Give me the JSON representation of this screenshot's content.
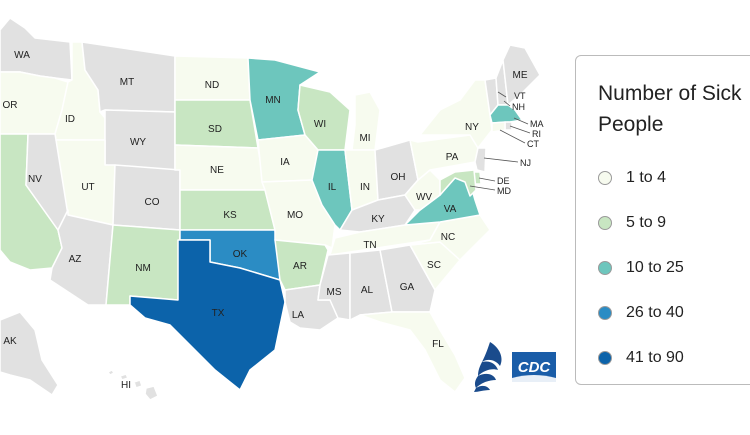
{
  "colors": {
    "none": "#e1e1e1",
    "border": "#ffffff",
    "bin1": "#f7fbef",
    "bin2": "#c8e6c2",
    "bin3": "#6dc6bd",
    "bin4": "#2b8cc4",
    "bin5": "#0c63aa"
  },
  "legend": {
    "title_line1": "Number of Sick",
    "title_line2": "People",
    "bins": [
      {
        "label": "1 to 4",
        "color": "#f7fbef"
      },
      {
        "label": "5 to 9",
        "color": "#c8e6c2"
      },
      {
        "label": "10 to 25",
        "color": "#6dc6bd"
      },
      {
        "label": "26 to 40",
        "color": "#2b8cc4"
      },
      {
        "label": "41 to 90",
        "color": "#0c63aa"
      }
    ]
  },
  "states": {
    "WA": "none",
    "OR": "bin1",
    "CA": "bin2",
    "ID": "bin1",
    "NV": "none",
    "MT": "none",
    "WY": "none",
    "UT": "bin1",
    "AZ": "none",
    "CO": "none",
    "NM": "bin2",
    "ND": "bin1",
    "SD": "bin2",
    "NE": "bin1",
    "KS": "bin2",
    "OK": "bin4",
    "TX": "bin5",
    "MN": "bin3",
    "IA": "bin1",
    "MO": "bin1",
    "AR": "bin2",
    "LA": "none",
    "WI": "bin2",
    "IL": "bin3",
    "MI": "bin1",
    "IN": "bin1",
    "OH": "none",
    "KY": "none",
    "TN": "bin1",
    "MS": "none",
    "AL": "none",
    "GA": "none",
    "FL": "bin1",
    "SC": "bin1",
    "NC": "bin1",
    "VA": "bin3",
    "WV": "bin1",
    "PA": "bin1",
    "NY": "bin1",
    "VT": "none",
    "NH": "none",
    "ME": "none",
    "MA": "bin3",
    "RI": "none",
    "CT": "bin1",
    "NJ": "none",
    "DE": "bin2",
    "MD": "bin2",
    "AK": "none",
    "HI": "none"
  },
  "labels": {
    "WA": "WA",
    "OR": "OR",
    "ID": "ID",
    "NV": "NV",
    "MT": "MT",
    "WY": "WY",
    "UT": "UT",
    "AZ": "AZ",
    "CO": "CO",
    "NM": "NM",
    "ND": "ND",
    "SD": "SD",
    "NE": "NE",
    "KS": "KS",
    "OK": "OK",
    "TX": "TX",
    "MN": "MN",
    "IA": "IA",
    "MO": "MO",
    "AR": "AR",
    "LA": "LA",
    "WI": "WI",
    "IL": "IL",
    "MI": "MI",
    "IN": "IN",
    "OH": "OH",
    "KY": "KY",
    "TN": "TN",
    "MS": "MS",
    "AL": "AL",
    "GA": "GA",
    "FL": "FL",
    "SC": "SC",
    "NC": "NC",
    "VA": "VA",
    "WV": "WV",
    "PA": "PA",
    "NY": "NY",
    "VT": "VT",
    "NH": "NH",
    "ME": "ME",
    "MA": "MA",
    "RI": "RI",
    "CT": "CT",
    "NJ": "NJ",
    "DE": "DE",
    "MD": "MD",
    "AK": "AK",
    "HI": "HI"
  },
  "logos": {
    "cdc_text": "CDC",
    "hhs_icon": "hhs-eagle-icon"
  }
}
